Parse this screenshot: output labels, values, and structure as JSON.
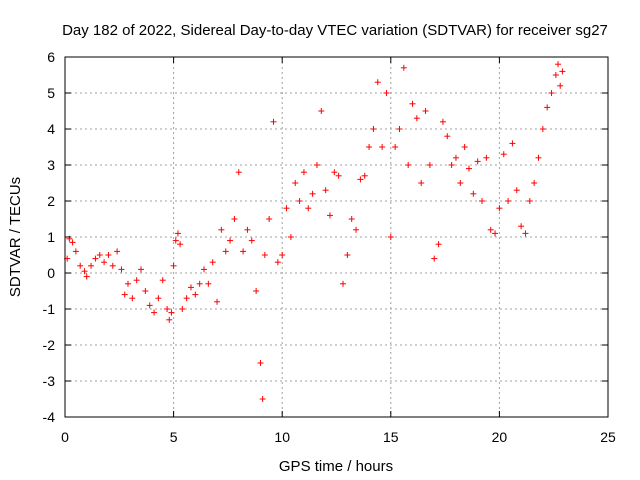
{
  "chart_data": {
    "type": "scatter",
    "title": "Day 182 of 2022, Sidereal Day-to-day VTEC variation (SDTVAR) for receiver sg27",
    "xlabel": "GPS time / hours",
    "ylabel": "SDTVAR / TECUs",
    "xlim": [
      0,
      25
    ],
    "ylim": [
      -4,
      6
    ],
    "xticks": [
      0,
      5,
      10,
      15,
      20,
      25
    ],
    "yticks": [
      -4,
      -3,
      -2,
      -1,
      0,
      1,
      2,
      3,
      4,
      5,
      6
    ],
    "grid": true,
    "marker": "+",
    "colors": {
      "series": "#ff0000",
      "grid": "#a0a0a0",
      "axis": "#000000"
    },
    "series": [
      {
        "name": "SDTVAR",
        "points": [
          [
            0.1,
            0.4
          ],
          [
            0.2,
            0.95
          ],
          [
            0.35,
            0.85
          ],
          [
            0.5,
            0.6
          ],
          [
            0.7,
            0.2
          ],
          [
            0.9,
            0.05
          ],
          [
            1.0,
            -0.1
          ],
          [
            1.2,
            0.2
          ],
          [
            1.4,
            0.4
          ],
          [
            1.6,
            0.5
          ],
          [
            1.8,
            0.3
          ],
          [
            2.0,
            0.5
          ],
          [
            2.2,
            0.2
          ],
          [
            2.4,
            0.6
          ],
          [
            2.6,
            0.1
          ],
          [
            2.75,
            -0.6
          ],
          [
            2.9,
            -0.3
          ],
          [
            3.1,
            -0.7
          ],
          [
            3.3,
            -0.2
          ],
          [
            3.5,
            0.1
          ],
          [
            3.7,
            -0.5
          ],
          [
            3.9,
            -0.9
          ],
          [
            4.1,
            -1.1
          ],
          [
            4.3,
            -0.7
          ],
          [
            4.5,
            -0.2
          ],
          [
            4.7,
            -1.0
          ],
          [
            4.8,
            -1.3
          ],
          [
            4.9,
            -1.1
          ],
          [
            5.0,
            0.2
          ],
          [
            5.1,
            0.9
          ],
          [
            5.2,
            1.1
          ],
          [
            5.3,
            0.8
          ],
          [
            5.4,
            -1.0
          ],
          [
            5.6,
            -0.7
          ],
          [
            5.8,
            -0.4
          ],
          [
            6.0,
            -0.6
          ],
          [
            6.2,
            -0.3
          ],
          [
            6.4,
            0.1
          ],
          [
            6.6,
            -0.3
          ],
          [
            6.8,
            0.3
          ],
          [
            7.0,
            -0.8
          ],
          [
            7.2,
            1.2
          ],
          [
            7.4,
            0.6
          ],
          [
            7.6,
            0.9
          ],
          [
            7.8,
            1.5
          ],
          [
            8.0,
            2.8
          ],
          [
            8.2,
            0.6
          ],
          [
            8.4,
            1.2
          ],
          [
            8.6,
            0.9
          ],
          [
            8.8,
            -0.5
          ],
          [
            9.0,
            -2.5
          ],
          [
            9.1,
            -3.5
          ],
          [
            9.2,
            0.5
          ],
          [
            9.4,
            1.5
          ],
          [
            9.6,
            4.2
          ],
          [
            9.8,
            0.3
          ],
          [
            10.0,
            0.5
          ],
          [
            10.2,
            1.8
          ],
          [
            10.4,
            1.0
          ],
          [
            10.6,
            2.5
          ],
          [
            10.8,
            2.0
          ],
          [
            11.0,
            2.8
          ],
          [
            11.2,
            1.8
          ],
          [
            11.4,
            2.2
          ],
          [
            11.6,
            3.0
          ],
          [
            11.8,
            4.5
          ],
          [
            12.0,
            2.3
          ],
          [
            12.2,
            1.6
          ],
          [
            12.4,
            2.8
          ],
          [
            12.6,
            2.7
          ],
          [
            12.8,
            -0.3
          ],
          [
            13.0,
            0.5
          ],
          [
            13.2,
            1.5
          ],
          [
            13.4,
            1.2
          ],
          [
            13.6,
            2.6
          ],
          [
            13.8,
            2.7
          ],
          [
            14.0,
            3.5
          ],
          [
            14.2,
            4.0
          ],
          [
            14.4,
            5.3
          ],
          [
            14.6,
            3.5
          ],
          [
            14.8,
            5.0
          ],
          [
            15.0,
            1.0
          ],
          [
            15.2,
            3.5
          ],
          [
            15.4,
            4.0
          ],
          [
            15.6,
            5.7
          ],
          [
            15.8,
            3.0
          ],
          [
            16.0,
            4.7
          ],
          [
            16.2,
            4.3
          ],
          [
            16.4,
            2.5
          ],
          [
            16.6,
            4.5
          ],
          [
            16.8,
            3.0
          ],
          [
            17.0,
            0.4
          ],
          [
            17.2,
            0.8
          ],
          [
            17.4,
            4.2
          ],
          [
            17.6,
            3.8
          ],
          [
            17.8,
            3.0
          ],
          [
            18.0,
            3.2
          ],
          [
            18.2,
            2.5
          ],
          [
            18.4,
            3.5
          ],
          [
            18.6,
            2.9
          ],
          [
            18.8,
            2.2
          ],
          [
            19.0,
            3.1
          ],
          [
            19.2,
            2.0
          ],
          [
            19.4,
            3.2
          ],
          [
            19.6,
            1.2
          ],
          [
            19.8,
            1.1
          ],
          [
            20.0,
            1.8
          ],
          [
            20.2,
            3.3
          ],
          [
            20.4,
            2.0
          ],
          [
            20.6,
            3.6
          ],
          [
            20.8,
            2.3
          ],
          [
            21.0,
            1.3
          ],
          [
            21.2,
            1.1
          ],
          [
            21.4,
            2.0
          ],
          [
            21.6,
            2.5
          ],
          [
            21.8,
            3.2
          ],
          [
            22.0,
            4.0
          ],
          [
            22.2,
            4.6
          ],
          [
            22.4,
            5.0
          ],
          [
            22.6,
            5.5
          ],
          [
            22.7,
            5.8
          ],
          [
            22.8,
            5.2
          ],
          [
            22.9,
            5.6
          ]
        ]
      }
    ]
  }
}
